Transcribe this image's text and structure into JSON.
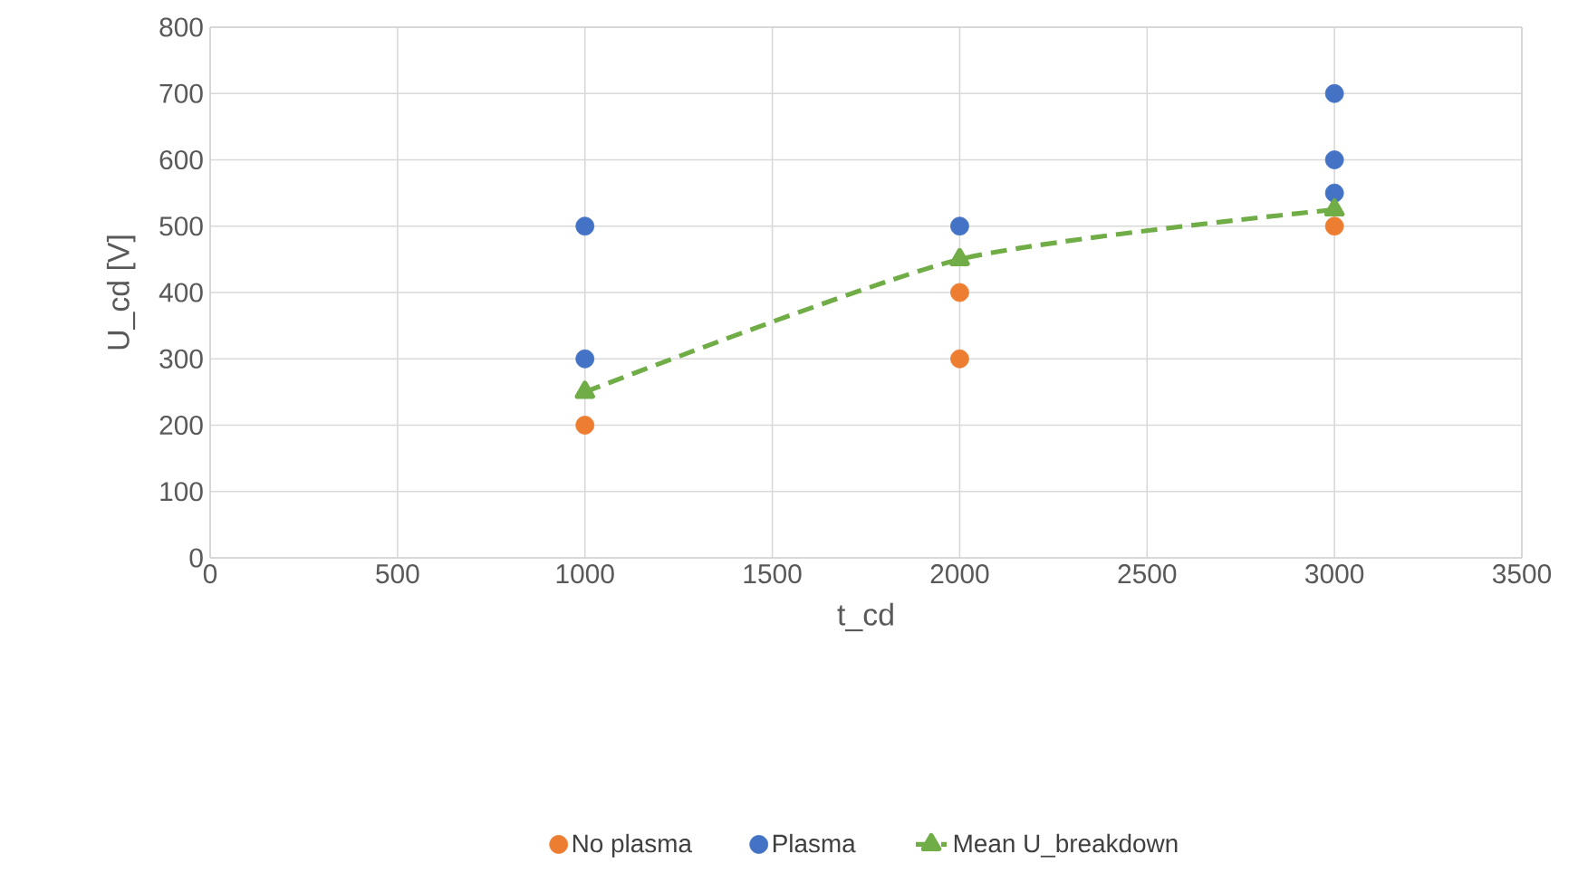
{
  "chart_data": {
    "type": "scatter",
    "xlabel": "t_cd",
    "ylabel": "U_cd [V]",
    "xlim": [
      0,
      3500
    ],
    "xticks": [
      0,
      500,
      1000,
      1500,
      2000,
      2500,
      3000,
      3500
    ],
    "ylim": [
      0,
      800
    ],
    "yticks": [
      0,
      100,
      200,
      300,
      400,
      500,
      600,
      700,
      800
    ],
    "grid": true,
    "legend": "bottom",
    "series": [
      {
        "name": "No plasma",
        "type": "scatter",
        "marker": "circle",
        "color": "#ed7d31",
        "x": [
          1000,
          2000,
          2000,
          3000
        ],
        "values": [
          200,
          300,
          400,
          500
        ]
      },
      {
        "name": "Plasma",
        "type": "scatter",
        "marker": "circle",
        "color": "#4472c4",
        "x": [
          1000,
          1000,
          2000,
          3000,
          3000,
          3000
        ],
        "values": [
          300,
          500,
          500,
          550,
          600,
          700
        ]
      },
      {
        "name": "Mean U_breakdown",
        "type": "line",
        "marker": "triangle",
        "line_style": "dashed",
        "color": "#70ad47",
        "x": [
          1000,
          2000,
          3000
        ],
        "values": [
          250,
          450,
          525
        ]
      }
    ]
  }
}
